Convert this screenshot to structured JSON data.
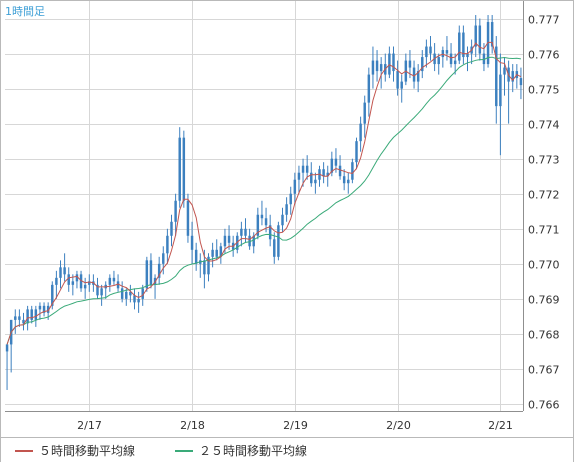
{
  "header": {
    "timeframe": "1時間足"
  },
  "legend": {
    "ma5": "５時間移動平均線",
    "ma25": "２５時間移動平均線"
  },
  "colors": {
    "candle": "#3c80bf",
    "ma5": "#c2554f",
    "ma25": "#3aaa79",
    "grid": "#d7d7d7",
    "axis": "#8f8f8f"
  },
  "chart_data": {
    "type": "candlestick",
    "title": "",
    "ylim": [
      0.7658,
      0.7775
    ],
    "y_ticks": [
      "0.777",
      "0.776",
      "0.775",
      "0.774",
      "0.773",
      "0.772",
      "0.771",
      "0.770",
      "0.769",
      "0.768",
      "0.767",
      "0.766"
    ],
    "x_ticks": [
      "2/17",
      "2/18",
      "2/19",
      "2/20",
      "2/21"
    ],
    "x_tick_index": [
      20,
      45,
      70,
      95,
      120
    ],
    "grid": true,
    "legend_position": "bottom",
    "series": [
      {
        "name": "５時間移動平均線",
        "type": "line"
      },
      {
        "name": "２５時間移動平均線",
        "type": "line"
      }
    ],
    "candles": [
      [
        0.7675,
        0.7677,
        0.7664,
        0.7677
      ],
      [
        0.7677,
        0.7684,
        0.7669,
        0.7684
      ],
      [
        0.7684,
        0.7687,
        0.768,
        0.7685
      ],
      [
        0.7685,
        0.7687,
        0.7682,
        0.7684
      ],
      [
        0.7684,
        0.7686,
        0.7681,
        0.7683
      ],
      [
        0.7683,
        0.7688,
        0.7681,
        0.7687
      ],
      [
        0.7687,
        0.7688,
        0.7683,
        0.7684
      ],
      [
        0.7684,
        0.7688,
        0.7682,
        0.7687
      ],
      [
        0.7687,
        0.7689,
        0.7684,
        0.7688
      ],
      [
        0.7688,
        0.7689,
        0.7685,
        0.7686
      ],
      [
        0.7686,
        0.7689,
        0.7684,
        0.7688
      ],
      [
        0.7688,
        0.7695,
        0.7687,
        0.7694
      ],
      [
        0.7694,
        0.7698,
        0.769,
        0.7696
      ],
      [
        0.7696,
        0.7701,
        0.7693,
        0.7699
      ],
      [
        0.7699,
        0.7703,
        0.7695,
        0.7697
      ],
      [
        0.7697,
        0.7699,
        0.7692,
        0.7694
      ],
      [
        0.7694,
        0.7697,
        0.7691,
        0.7695
      ],
      [
        0.7695,
        0.7698,
        0.7693,
        0.7697
      ],
      [
        0.7697,
        0.7698,
        0.7692,
        0.7693
      ],
      [
        0.7693,
        0.7696,
        0.769,
        0.7694
      ],
      [
        0.7694,
        0.7697,
        0.7692,
        0.7695
      ],
      [
        0.7695,
        0.7697,
        0.7692,
        0.7694
      ],
      [
        0.7694,
        0.7696,
        0.769,
        0.7691
      ],
      [
        0.7691,
        0.7694,
        0.7688,
        0.7693
      ],
      [
        0.7693,
        0.7695,
        0.769,
        0.7694
      ],
      [
        0.7694,
        0.7697,
        0.7692,
        0.7696
      ],
      [
        0.7696,
        0.7698,
        0.7694,
        0.7695
      ],
      [
        0.7695,
        0.7697,
        0.7692,
        0.7693
      ],
      [
        0.7693,
        0.7695,
        0.7689,
        0.769
      ],
      [
        0.769,
        0.7693,
        0.7688,
        0.7692
      ],
      [
        0.7692,
        0.7694,
        0.7689,
        0.7691
      ],
      [
        0.7691,
        0.7693,
        0.7687,
        0.7689
      ],
      [
        0.7689,
        0.7692,
        0.7686,
        0.769
      ],
      [
        0.769,
        0.7694,
        0.7688,
        0.7693
      ],
      [
        0.7693,
        0.7702,
        0.7692,
        0.7701
      ],
      [
        0.7701,
        0.7703,
        0.7693,
        0.7694
      ],
      [
        0.7694,
        0.7697,
        0.769,
        0.7696
      ],
      [
        0.7696,
        0.7702,
        0.7694,
        0.77
      ],
      [
        0.77,
        0.7705,
        0.7697,
        0.7703
      ],
      [
        0.7703,
        0.771,
        0.77,
        0.7708
      ],
      [
        0.7708,
        0.7714,
        0.7705,
        0.7712
      ],
      [
        0.7712,
        0.772,
        0.7708,
        0.7718
      ],
      [
        0.7718,
        0.7739,
        0.7716,
        0.7736
      ],
      [
        0.7736,
        0.7738,
        0.7716,
        0.7718
      ],
      [
        0.7718,
        0.772,
        0.7706,
        0.7708
      ],
      [
        0.7708,
        0.7712,
        0.77,
        0.7704
      ],
      [
        0.7704,
        0.7706,
        0.7698,
        0.77
      ],
      [
        0.77,
        0.7703,
        0.7696,
        0.7701
      ],
      [
        0.7701,
        0.7704,
        0.7693,
        0.7697
      ],
      [
        0.7697,
        0.7703,
        0.7695,
        0.7702
      ],
      [
        0.7702,
        0.7706,
        0.7699,
        0.7704
      ],
      [
        0.7704,
        0.7707,
        0.7701,
        0.7702
      ],
      [
        0.7702,
        0.7706,
        0.77,
        0.7705
      ],
      [
        0.7705,
        0.771,
        0.7703,
        0.7708
      ],
      [
        0.7708,
        0.7711,
        0.7704,
        0.7706
      ],
      [
        0.7706,
        0.7708,
        0.7702,
        0.7704
      ],
      [
        0.7704,
        0.7709,
        0.7703,
        0.7708
      ],
      [
        0.7708,
        0.7712,
        0.7705,
        0.771
      ],
      [
        0.771,
        0.7713,
        0.7706,
        0.7708
      ],
      [
        0.7708,
        0.771,
        0.7704,
        0.7705
      ],
      [
        0.7705,
        0.7709,
        0.7703,
        0.7708
      ],
      [
        0.7708,
        0.7716,
        0.7707,
        0.7714
      ],
      [
        0.7714,
        0.7718,
        0.7711,
        0.7713
      ],
      [
        0.7713,
        0.7716,
        0.7709,
        0.7711
      ],
      [
        0.7711,
        0.7714,
        0.7705,
        0.7707
      ],
      [
        0.7707,
        0.7709,
        0.77,
        0.7702
      ],
      [
        0.7702,
        0.7712,
        0.7701,
        0.7711
      ],
      [
        0.7711,
        0.7716,
        0.7709,
        0.7714
      ],
      [
        0.7714,
        0.7719,
        0.7712,
        0.7717
      ],
      [
        0.7717,
        0.7722,
        0.7714,
        0.772
      ],
      [
        0.772,
        0.7726,
        0.7717,
        0.7724
      ],
      [
        0.7724,
        0.7728,
        0.772,
        0.7726
      ],
      [
        0.7726,
        0.773,
        0.7722,
        0.7728
      ],
      [
        0.7728,
        0.7731,
        0.7724,
        0.7726
      ],
      [
        0.7726,
        0.7729,
        0.7722,
        0.7723
      ],
      [
        0.7723,
        0.7726,
        0.772,
        0.7724
      ],
      [
        0.7724,
        0.7728,
        0.7722,
        0.7727
      ],
      [
        0.7727,
        0.7729,
        0.7723,
        0.7725
      ],
      [
        0.7725,
        0.7728,
        0.7722,
        0.7726
      ],
      [
        0.7726,
        0.7732,
        0.7725,
        0.773
      ],
      [
        0.773,
        0.7733,
        0.7726,
        0.7728
      ],
      [
        0.7728,
        0.7731,
        0.7724,
        0.7725
      ],
      [
        0.7725,
        0.7727,
        0.7721,
        0.7723
      ],
      [
        0.7723,
        0.7726,
        0.772,
        0.7724
      ],
      [
        0.7724,
        0.773,
        0.7723,
        0.7729
      ],
      [
        0.7729,
        0.7736,
        0.7727,
        0.7735
      ],
      [
        0.7735,
        0.7742,
        0.7732,
        0.774
      ],
      [
        0.774,
        0.7748,
        0.7736,
        0.7746
      ],
      [
        0.7746,
        0.7756,
        0.7742,
        0.7754
      ],
      [
        0.7754,
        0.7762,
        0.775,
        0.7758
      ],
      [
        0.7758,
        0.7761,
        0.7752,
        0.7755
      ],
      [
        0.7755,
        0.7759,
        0.775,
        0.7757
      ],
      [
        0.7757,
        0.776,
        0.7752,
        0.7754
      ],
      [
        0.7754,
        0.7762,
        0.7753,
        0.776
      ],
      [
        0.776,
        0.7762,
        0.7752,
        0.7755
      ],
      [
        0.7755,
        0.7758,
        0.7748,
        0.775
      ],
      [
        0.775,
        0.7754,
        0.7746,
        0.7752
      ],
      [
        0.7752,
        0.776,
        0.7751,
        0.7758
      ],
      [
        0.7758,
        0.7761,
        0.7753,
        0.7756
      ],
      [
        0.7756,
        0.7758,
        0.775,
        0.7752
      ],
      [
        0.7752,
        0.7757,
        0.7749,
        0.7755
      ],
      [
        0.7755,
        0.7761,
        0.7753,
        0.7759
      ],
      [
        0.7759,
        0.7764,
        0.7756,
        0.7762
      ],
      [
        0.7762,
        0.7765,
        0.7758,
        0.776
      ],
      [
        0.776,
        0.7763,
        0.7755,
        0.7757
      ],
      [
        0.7757,
        0.776,
        0.7754,
        0.7759
      ],
      [
        0.7759,
        0.7762,
        0.7756,
        0.7761
      ],
      [
        0.7761,
        0.7765,
        0.7758,
        0.776
      ],
      [
        0.776,
        0.7763,
        0.7756,
        0.7757
      ],
      [
        0.7757,
        0.776,
        0.7754,
        0.7758
      ],
      [
        0.7758,
        0.7768,
        0.7757,
        0.7766
      ],
      [
        0.7766,
        0.7768,
        0.7757,
        0.7759
      ],
      [
        0.7759,
        0.7762,
        0.7755,
        0.776
      ],
      [
        0.776,
        0.7764,
        0.7757,
        0.7762
      ],
      [
        0.7762,
        0.7771,
        0.7759,
        0.7768
      ],
      [
        0.7768,
        0.777,
        0.7758,
        0.776
      ],
      [
        0.776,
        0.7763,
        0.7755,
        0.7757
      ],
      [
        0.7757,
        0.7771,
        0.7756,
        0.7769
      ],
      [
        0.7769,
        0.7771,
        0.776,
        0.7762
      ],
      [
        0.7762,
        0.7765,
        0.774,
        0.7745
      ],
      [
        0.7745,
        0.776,
        0.7731,
        0.7754
      ],
      [
        0.7754,
        0.7759,
        0.7748,
        0.7756
      ],
      [
        0.7756,
        0.7758,
        0.774,
        0.7752
      ],
      [
        0.7752,
        0.7757,
        0.7749,
        0.7755
      ],
      [
        0.7755,
        0.7757,
        0.775,
        0.7753
      ],
      [
        0.7753,
        0.7756,
        0.7747,
        0.7751
      ]
    ]
  }
}
